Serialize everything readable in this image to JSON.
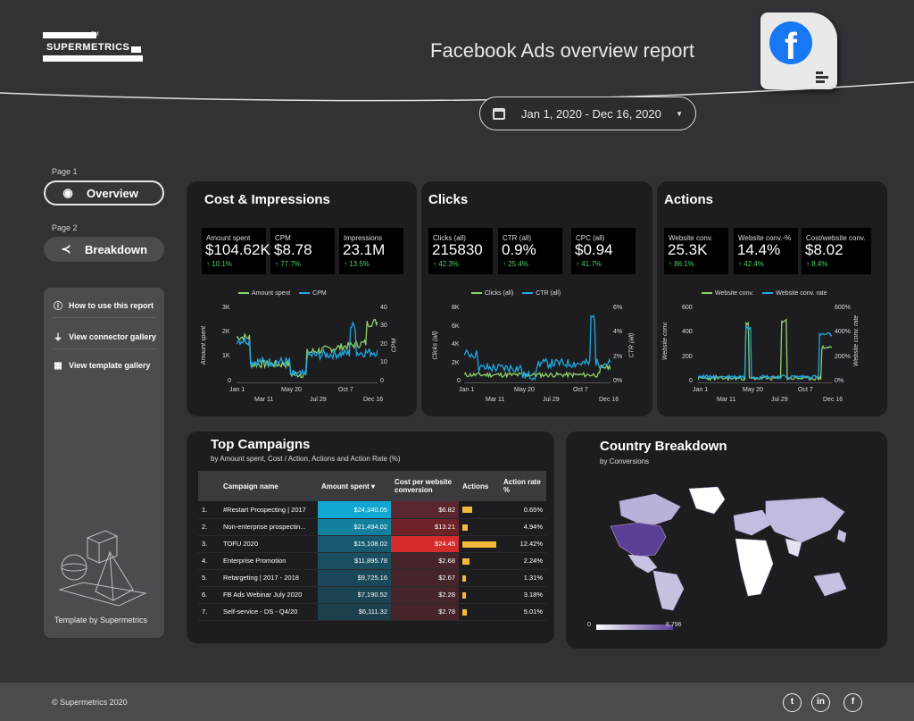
{
  "header": {
    "logo_text": "SUPERMETRICS",
    "logo_tm": "TM",
    "title": "Facebook Ads overview report",
    "fb_letter": "f",
    "date_range": "Jan 1, 2020 - Dec 16, 2020"
  },
  "sidebar": {
    "page1_label": "Page 1",
    "page2_label": "Page 2",
    "overview_label": "Overview",
    "breakdown_label": "Breakdown",
    "help_items": [
      "How to use this report",
      "View connector gallery",
      "View template gallery"
    ],
    "credit": "Template by Supermetrics"
  },
  "cost": {
    "title": "Cost & Impressions",
    "kpis": [
      {
        "label": "Amount spent",
        "value": "$104.62K",
        "change": "↑ 10.1%"
      },
      {
        "label": "CPM",
        "value": "$8.78",
        "change": "↑ 77.7%"
      },
      {
        "label": "Impressions",
        "value": "23.1M",
        "change": "↑ 13.5%"
      }
    ],
    "legend": [
      "Amount spent",
      "CPM"
    ],
    "ylabel_left": "Amount spent",
    "ylabel_right": "CPM",
    "yticks_left": [
      "3K",
      "2K",
      "1K",
      "0"
    ],
    "yticks_right": [
      "40",
      "30",
      "20",
      "10",
      "0"
    ]
  },
  "clicks": {
    "title": "Clicks",
    "kpis": [
      {
        "label": "Clicks (all)",
        "value": "215830",
        "change": "↑ 42.3%"
      },
      {
        "label": "CTR (all)",
        "value": "0.9%",
        "change": "↑ 25.4%"
      },
      {
        "label": "CPC (all)",
        "value": "$0.94",
        "change": "↑ 41.7%"
      }
    ],
    "legend": [
      "Clicks (all)",
      "CTR (all)"
    ],
    "ylabel_left": "Clicks (all)",
    "ylabel_right": "CTR (all)",
    "yticks_left": [
      "8K",
      "6K",
      "4K",
      "2K",
      "0"
    ],
    "yticks_right": [
      "6%",
      "4%",
      "2%",
      "0%"
    ]
  },
  "actions": {
    "title": "Actions",
    "kpis": [
      {
        "label": "Website conv.",
        "value": "25.3K",
        "change": "↑ 86.1%"
      },
      {
        "label": "Website conv.-%",
        "value": "14.4%",
        "change": "↑ 42.4%"
      },
      {
        "label": "Cost/website conv.",
        "value": "$8.02",
        "change": "↑ 8.4%"
      }
    ],
    "legend": [
      "Website conv.",
      "Website conv. rate"
    ],
    "ylabel_left": "Website conv.",
    "ylabel_right": "Website conv. rate",
    "yticks_left": [
      "600",
      "400",
      "200",
      "0"
    ],
    "yticks_right": [
      "600%",
      "400%",
      "200%",
      "0%"
    ]
  },
  "xaxis": {
    "top": [
      "Jan 1",
      "May 20",
      "Oct 7"
    ],
    "bottom": [
      "Mar 11",
      "Jul 29",
      "Dec 16"
    ]
  },
  "campaigns": {
    "title": "Top Campaigns",
    "subtitle": "by  Amount spent, Cost / Action, Actions and Action Rate (%)",
    "headers": [
      "Campaign name",
      "Amount spent ▾",
      "Cost per website conversion",
      "Actions",
      "Action rate %"
    ],
    "rows": [
      {
        "n": "1.",
        "name": "#Restart Prospecting | 2017",
        "spent": "$24,340.05",
        "cost": "$6.82",
        "actions": 0.3,
        "rate": "0.65%"
      },
      {
        "n": "2.",
        "name": "Non-enterprise prospectin...",
        "spent": "$21,494.02",
        "cost": "$13.21",
        "actions": 0.15,
        "rate": "4.94%"
      },
      {
        "n": "3.",
        "name": "TOFU 2020",
        "spent": "$15,108.02",
        "cost": "$24.45",
        "actions": 1.0,
        "rate": "12.42%"
      },
      {
        "n": "4.",
        "name": "Enterprise Promotion",
        "spent": "$11,895.78",
        "cost": "$2.68",
        "actions": 0.2,
        "rate": "2.24%"
      },
      {
        "n": "5.",
        "name": "Retargeting | 2017 - 2018",
        "spent": "$9,725.16",
        "cost": "$2.67",
        "actions": 0.1,
        "rate": "1.31%"
      },
      {
        "n": "6.",
        "name": "FB Ads Webinar July 2020",
        "spent": "$7,190.52",
        "cost": "$2.28",
        "actions": 0.1,
        "rate": "3.18%"
      },
      {
        "n": "7.",
        "name": "Self-service - DS - Q4/20",
        "spent": "$6,111.32",
        "cost": "$2.78",
        "actions": 0.12,
        "rate": "5.01%"
      }
    ]
  },
  "country": {
    "title": "Country Breakdown",
    "subtitle": "by Conversions",
    "scale_min": "0",
    "scale_max": "8,796"
  },
  "footer": {
    "copyright": "© Supermetrics 2020",
    "social": [
      "twitter-icon",
      "linkedin-icon",
      "facebook-icon"
    ],
    "social_glyphs": [
      "t",
      "in",
      "f"
    ]
  },
  "colors": {
    "series_green": "#8fd16a",
    "series_blue": "#1fa7e0",
    "accent_bar": "#f6b83b"
  }
}
